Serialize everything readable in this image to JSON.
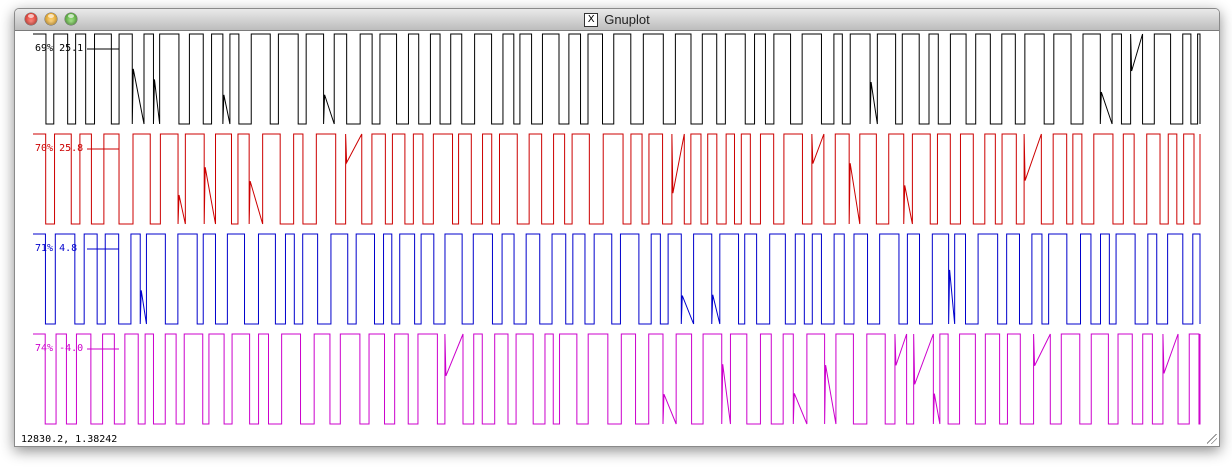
{
  "window": {
    "title": "Gnuplot",
    "app_icon": "x11-icon",
    "app_icon_glyph": "X"
  },
  "plot": {
    "series": [
      {
        "label": "69% 25.1",
        "color": "#000000",
        "duty": 0.69
      },
      {
        "label": "70% 25.8",
        "color": "#cc0000",
        "duty": 0.7
      },
      {
        "label": "71% 4.8",
        "color": "#0000cc",
        "duty": 0.71
      },
      {
        "label": "74% -4.0",
        "color": "#cc00cc",
        "duty": 0.74
      }
    ]
  },
  "status": {
    "coordinates": "12830.2,  1.38242"
  }
}
